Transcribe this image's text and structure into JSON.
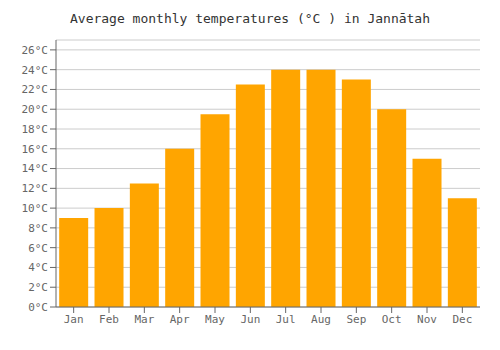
{
  "chart_data": {
    "type": "bar",
    "title": "Average monthly temperatures (°C ) in Jannātah",
    "categories": [
      "Jan",
      "Feb",
      "Mar",
      "Apr",
      "May",
      "Jun",
      "Jul",
      "Aug",
      "Sep",
      "Oct",
      "Nov",
      "Dec"
    ],
    "values": [
      9,
      10,
      12.5,
      16,
      19.5,
      22.5,
      24,
      24,
      23,
      20,
      15,
      11
    ],
    "color": "#FFA500",
    "ylim": [
      0,
      27
    ],
    "yticks": [
      {
        "value": 0,
        "label": "0°C"
      },
      {
        "value": 2,
        "label": "2°C"
      },
      {
        "value": 4,
        "label": "4°C"
      },
      {
        "value": 6,
        "label": "6°C"
      },
      {
        "value": 8,
        "label": "8°C"
      },
      {
        "value": 10,
        "label": "10°C"
      },
      {
        "value": 12,
        "label": "12°C"
      },
      {
        "value": 14,
        "label": "14°C"
      },
      {
        "value": 16,
        "label": "16°C"
      },
      {
        "value": 18,
        "label": "18°C"
      },
      {
        "value": 20,
        "label": "20°C"
      },
      {
        "value": 22,
        "label": "22°C"
      },
      {
        "value": 24,
        "label": "24°C"
      },
      {
        "value": 26,
        "label": "26°C"
      }
    ],
    "grid": true
  }
}
